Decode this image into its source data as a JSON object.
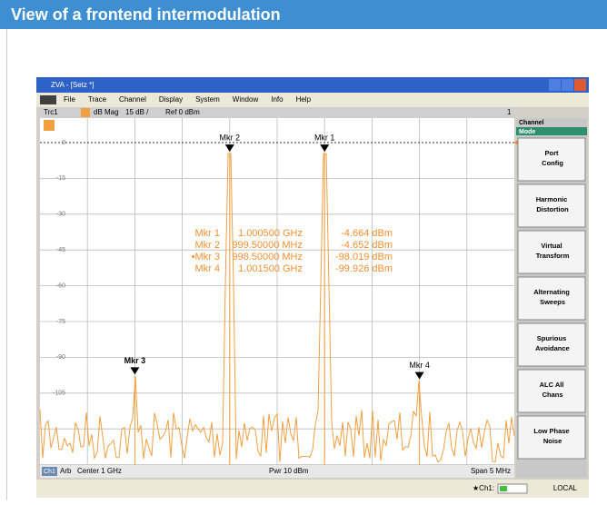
{
  "header": {
    "title": "View of a frontend intermodulation"
  },
  "window": {
    "title": "ZVA - [Setz *]",
    "menu": [
      "File",
      "Trace",
      "Channel",
      "Display",
      "System",
      "Window",
      "Info",
      "Help"
    ],
    "trace_bar": {
      "trace": "Trc1",
      "format": "dB Mag",
      "scale": "15 dB /",
      "ref": "Ref 0 dBm",
      "channel": "1"
    },
    "y_labels": [
      "0",
      "-15",
      "-30",
      "-45",
      "-60",
      "-75",
      "-90",
      "-105"
    ],
    "markers": [
      "Mkr 3",
      "Mkr 2",
      "Mkr 1",
      "Mkr 4"
    ],
    "readouts": [
      [
        "Mkr 1",
        "1.000500 GHz",
        "-4.664 dBm"
      ],
      [
        "Mkr 2",
        "999.50000 MHz",
        "-4.652 dBm"
      ],
      [
        "•Mkr 3",
        "998.50000 MHz",
        "-98.019 dBm"
      ],
      [
        "Mkr 4",
        "1.001500 GHz",
        "-99.926 dBm"
      ]
    ],
    "footer": {
      "channel": "Ch1",
      "mode": "Arb",
      "center": "Center 1 GHz",
      "power": "Pwr 10 dBm",
      "span": "Span 5 MHz"
    },
    "status": {
      "channel": "★Ch1:",
      "remote": "LOCAL"
    },
    "softkeys": {
      "title": "Channel",
      "subtitle": "Mode",
      "buttons": [
        "Port Config",
        "Harmonic Distortion",
        "Virtual Transform",
        "Alternating Sweeps",
        "Spurious Avoidance",
        "ALC All Chans",
        "Low Phase Noise"
      ]
    }
  }
}
